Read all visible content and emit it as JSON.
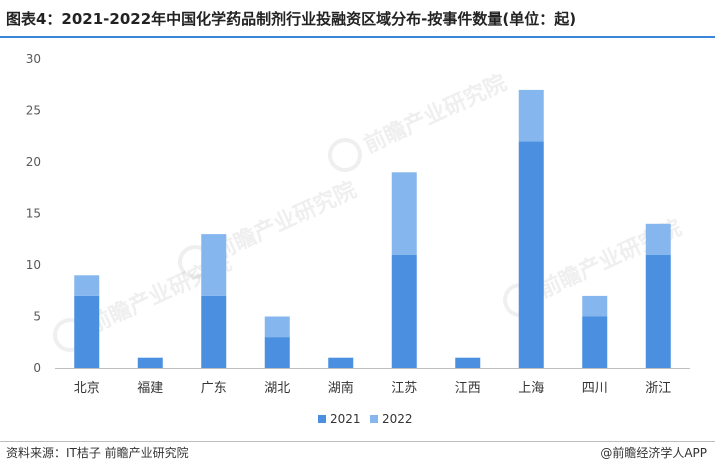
{
  "title": "图表4：2021-2022年中国化学药品制剂行业投融资区域分布-按事件数量(单位：起)",
  "source": "资料来源：IT桔子 前瞻产业研究院",
  "credit": "@前瞻经济学人APP",
  "watermark": "前瞻产业研究院",
  "colors": {
    "s2021": "#4a8fe0",
    "s2022": "#86b6ee",
    "axis": "#bfbfbf",
    "tick": "#595959"
  },
  "chart_data": {
    "type": "bar",
    "stacked": true,
    "categories": [
      "北京",
      "福建",
      "广东",
      "湖北",
      "湖南",
      "江苏",
      "江西",
      "上海",
      "四川",
      "浙江"
    ],
    "series": [
      {
        "name": "2021",
        "values": [
          7,
          1,
          7,
          3,
          1,
          11,
          1,
          22,
          5,
          11
        ]
      },
      {
        "name": "2022",
        "values": [
          2,
          0,
          6,
          2,
          0,
          8,
          0,
          5,
          2,
          3
        ]
      }
    ],
    "title": "图表4：2021-2022年中国化学药品制剂行业投融资区域分布-按事件数量(单位：起)",
    "xlabel": "",
    "ylabel": "",
    "ylim": [
      0,
      30
    ],
    "yticks": [
      0,
      5,
      10,
      15,
      20,
      25,
      30
    ],
    "grid": false,
    "legend": "bottom-center"
  }
}
